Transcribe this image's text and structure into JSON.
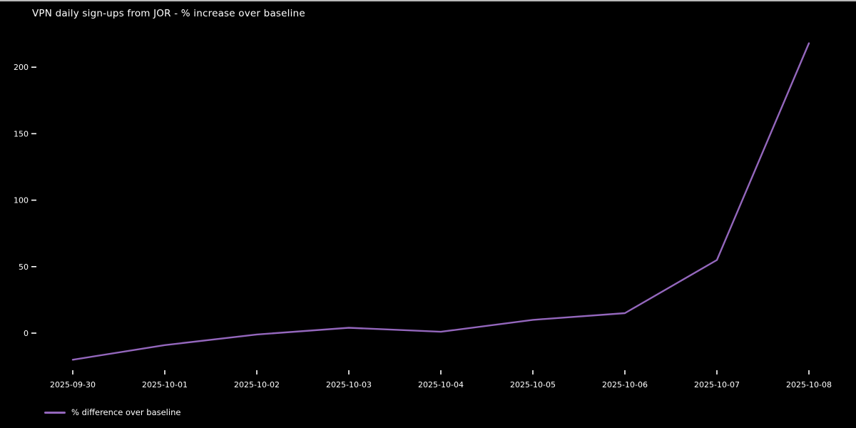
{
  "chart": {
    "title": "VPN daily sign-ups from JOR - % increase over baseline",
    "legend_label": "% difference over baseline"
  },
  "colors": {
    "background": "#000000",
    "text": "#ffffff",
    "line": "#9467bd",
    "top_border": "#b9b9b9"
  },
  "chart_data": {
    "type": "line",
    "title": "VPN daily sign-ups from JOR - % increase over baseline",
    "x": [
      "2025-09-30",
      "2025-10-01",
      "2025-10-02",
      "2025-10-03",
      "2025-10-04",
      "2025-10-05",
      "2025-10-06",
      "2025-10-07",
      "2025-10-08"
    ],
    "series": [
      {
        "name": "% difference over baseline",
        "values": [
          -20,
          -9,
          -1,
          4,
          1,
          10,
          15,
          55,
          218
        ]
      }
    ],
    "xlabel": "",
    "ylabel": "",
    "yticks": [
      0,
      50,
      100,
      150,
      200
    ],
    "ylim": [
      -27,
      229
    ],
    "grid": false,
    "legend_position": "bottom-left",
    "line_color": "#9467bd",
    "background": "#000000"
  }
}
